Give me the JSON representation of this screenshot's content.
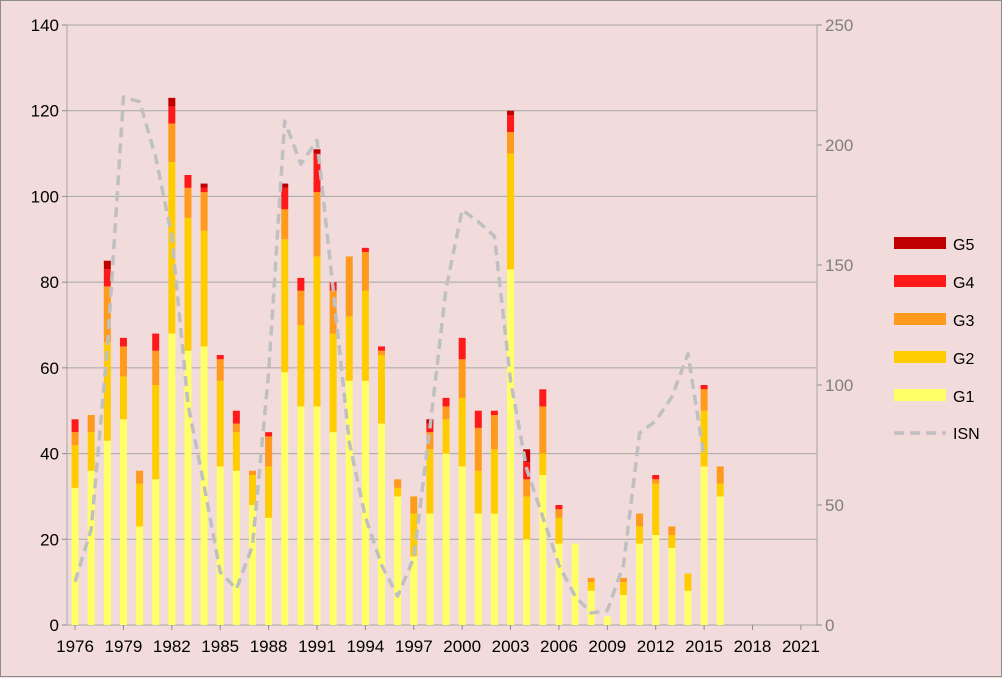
{
  "chart_data": {
    "type": "bar",
    "stacked": true,
    "title": "",
    "xlabel": "",
    "ylabel": "",
    "ylim": [
      0,
      140
    ],
    "y2lim": [
      0,
      250
    ],
    "xlim": [
      1976,
      2022
    ],
    "yticks": [
      0,
      20,
      40,
      60,
      80,
      100,
      120,
      140
    ],
    "y2ticks": [
      0,
      50,
      100,
      150,
      200,
      250
    ],
    "xticks": [
      1976,
      1979,
      1982,
      1985,
      1988,
      1991,
      1994,
      1997,
      2000,
      2003,
      2006,
      2009,
      2012,
      2015,
      2018,
      2021
    ],
    "grid": true,
    "legend_position": "right",
    "years": [
      1976,
      1977,
      1978,
      1979,
      1980,
      1981,
      1982,
      1983,
      1984,
      1985,
      1986,
      1987,
      1988,
      1989,
      1990,
      1991,
      1992,
      1993,
      1994,
      1995,
      1996,
      1997,
      1998,
      1999,
      2000,
      2001,
      2002,
      2003,
      2004,
      2005,
      2006,
      2007,
      2008,
      2009,
      2010,
      2011,
      2012,
      2013,
      2014,
      2015,
      2016
    ],
    "series": [
      {
        "name": "G1",
        "color": "#ffff66",
        "values": [
          32,
          36,
          43,
          48,
          23,
          34,
          68,
          64,
          65,
          37,
          36,
          28,
          25,
          59,
          51,
          51,
          45,
          57,
          57,
          47,
          30,
          16,
          26,
          40,
          37,
          26,
          26,
          83,
          20,
          35,
          19,
          19,
          8,
          2,
          7,
          19,
          21,
          18,
          8,
          37,
          30
        ]
      },
      {
        "name": "G2",
        "color": "#ffcc00",
        "values": [
          10,
          9,
          23,
          10,
          10,
          22,
          40,
          31,
          27,
          20,
          9,
          7,
          12,
          31,
          19,
          35,
          23,
          15,
          21,
          16,
          2,
          10,
          15,
          8,
          16,
          10,
          15,
          27,
          10,
          5,
          6,
          0,
          2,
          0,
          3,
          4,
          12,
          3,
          4,
          13,
          3
        ]
      },
      {
        "name": "G3",
        "color": "#ff9a1c",
        "values": [
          3,
          4,
          13,
          7,
          3,
          8,
          9,
          7,
          9,
          5,
          2,
          1,
          7,
          7,
          8,
          15,
          10,
          14,
          9,
          1,
          2,
          4,
          4,
          3,
          9,
          10,
          8,
          5,
          4,
          11,
          2,
          0,
          1,
          0,
          1,
          3,
          1,
          2,
          0,
          5,
          4
        ]
      },
      {
        "name": "G4",
        "color": "#ff1a1a",
        "values": [
          3,
          0,
          4,
          2,
          0,
          4,
          4,
          3,
          1,
          1,
          3,
          0,
          1,
          5,
          3,
          9,
          2,
          0,
          1,
          1,
          0,
          0,
          2,
          2,
          5,
          4,
          1,
          4,
          4,
          4,
          1,
          0,
          0,
          0,
          0,
          0,
          1,
          0,
          0,
          1,
          0
        ]
      },
      {
        "name": "G5",
        "color": "#c00000",
        "values": [
          0,
          0,
          2,
          0,
          0,
          0,
          2,
          0,
          1,
          0,
          0,
          0,
          0,
          1,
          0,
          1,
          0,
          0,
          0,
          0,
          0,
          0,
          1,
          0,
          0,
          0,
          0,
          1,
          3,
          0,
          0,
          0,
          0,
          0,
          0,
          0,
          0,
          0,
          0,
          0,
          0
        ]
      }
    ],
    "line_series": {
      "name": "ISN",
      "axis": "right",
      "color": "#c0c0c0",
      "style": "dashed",
      "x": [
        1976,
        1977,
        1978,
        1979,
        1980,
        1981,
        1982,
        1983,
        1984,
        1985,
        1986,
        1987,
        1988,
        1989,
        1990,
        1991,
        1992,
        1993,
        1994,
        1995,
        1996,
        1997,
        1998,
        1999,
        2000,
        2001,
        2002,
        2003,
        2004,
        2005,
        2006,
        2007,
        2008,
        2009,
        2010,
        2011,
        2012,
        2013,
        2014,
        2015
      ],
      "values": [
        18,
        40,
        115,
        220,
        218,
        195,
        162,
        92,
        58,
        22,
        15,
        33,
        105,
        210,
        192,
        202,
        140,
        76,
        45,
        25,
        12,
        28,
        82,
        140,
        173,
        168,
        162,
        102,
        65,
        45,
        25,
        12,
        5,
        6,
        25,
        80,
        85,
        95,
        113,
        70
      ]
    }
  }
}
